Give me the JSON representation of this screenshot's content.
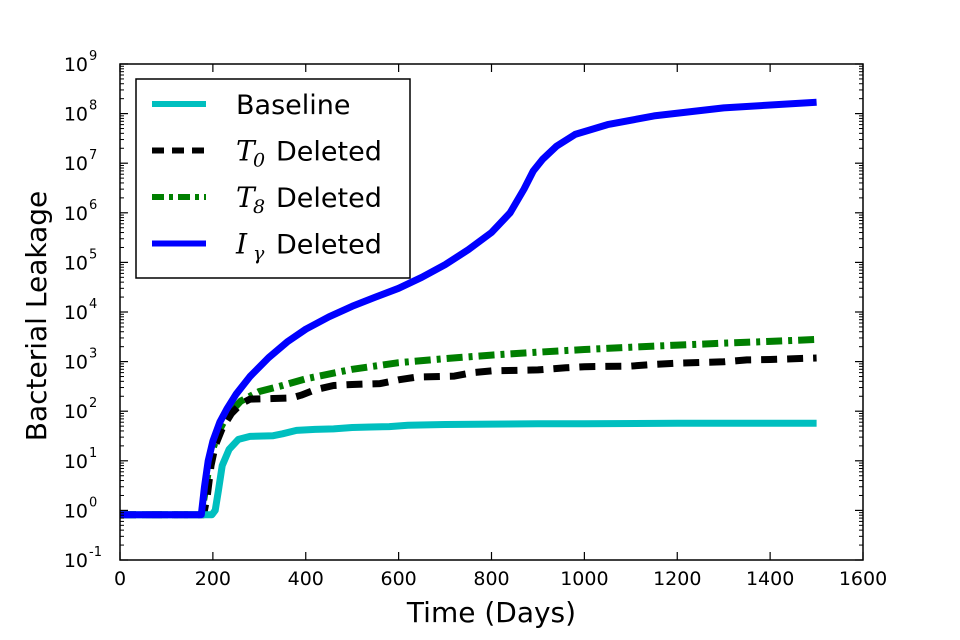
{
  "chart_data": {
    "type": "line",
    "xlabel": "Time (Days)",
    "ylabel": "Bacterial Leakage",
    "xlim": [
      0,
      1600
    ],
    "ylim": [
      0.1,
      1000000000
    ],
    "yscale": "log",
    "grid": false,
    "legend_position": "top-left",
    "x_ticks": [
      0,
      200,
      400,
      600,
      800,
      1000,
      1200,
      1400,
      1600
    ],
    "x_tick_labels": [
      "0",
      "200",
      "400",
      "600",
      "800",
      "1000",
      "1200",
      "1400",
      "1600"
    ],
    "y_ticks": [
      {
        "value": 0.1,
        "base": "10",
        "exp": "-1"
      },
      {
        "value": 1,
        "base": "10",
        "exp": "0"
      },
      {
        "value": 10,
        "base": "10",
        "exp": "1"
      },
      {
        "value": 100,
        "base": "10",
        "exp": "2"
      },
      {
        "value": 1000,
        "base": "10",
        "exp": "3"
      },
      {
        "value": 10000,
        "base": "10",
        "exp": "4"
      },
      {
        "value": 100000,
        "base": "10",
        "exp": "5"
      },
      {
        "value": 1000000,
        "base": "10",
        "exp": "6"
      },
      {
        "value": 10000000,
        "base": "10",
        "exp": "7"
      },
      {
        "value": 100000000,
        "base": "10",
        "exp": "8"
      },
      {
        "value": 1000000000,
        "base": "10",
        "exp": "9"
      }
    ],
    "series": [
      {
        "key": "baseline",
        "legend_main": "Baseline",
        "legend_symbol": "",
        "legend_sub": "",
        "legend_suffix": "",
        "color": "#00bfbf",
        "style": "solid",
        "x": [
          0,
          100,
          180,
          198,
          205,
          212,
          220,
          235,
          255,
          280,
          330,
          350,
          380,
          420,
          460,
          500,
          540,
          580,
          620,
          700,
          800,
          900,
          1000,
          1200,
          1400,
          1500
        ],
        "y": [
          0.82,
          0.82,
          0.82,
          0.82,
          1.0,
          2.5,
          8,
          17,
          27,
          31,
          32,
          35,
          41,
          43,
          44,
          47,
          48,
          49,
          52,
          54,
          55,
          56,
          56,
          57,
          57,
          57
        ]
      },
      {
        "key": "t0",
        "legend_main": "Deleted",
        "legend_symbol": "T",
        "legend_sub": "0",
        "legend_suffix": "",
        "color": "#000000",
        "style": "dashed",
        "x": [
          0,
          100,
          180,
          188,
          196,
          205,
          220,
          240,
          260,
          280,
          330,
          370,
          390,
          420,
          460,
          500,
          560,
          600,
          640,
          720,
          760,
          800,
          900,
          960,
          1000,
          1100,
          1150,
          1200,
          1300,
          1350,
          1400,
          1500
        ],
        "y": [
          0.82,
          0.82,
          0.82,
          2,
          8,
          20,
          45,
          90,
          140,
          175,
          180,
          185,
          210,
          270,
          330,
          345,
          360,
          430,
          490,
          510,
          600,
          650,
          680,
          750,
          790,
          810,
          880,
          930,
          990,
          1080,
          1100,
          1180
        ]
      },
      {
        "key": "t8",
        "legend_main": "Deleted",
        "legend_symbol": "T",
        "legend_sub": "8",
        "legend_suffix": "",
        "color": "#007f00",
        "style": "dashdot",
        "x": [
          0,
          100,
          175,
          185,
          195,
          210,
          230,
          260,
          300,
          350,
          400,
          500,
          600,
          700,
          800,
          900,
          1000,
          1100,
          1200,
          1300,
          1400,
          1500
        ],
        "y": [
          0.82,
          0.82,
          0.82,
          3,
          12,
          35,
          80,
          160,
          250,
          330,
          450,
          700,
          950,
          1150,
          1350,
          1550,
          1750,
          1950,
          2150,
          2350,
          2550,
          2800
        ]
      },
      {
        "key": "igamma",
        "legend_main": "Deleted",
        "legend_symbol": "I",
        "legend_sub": "γ",
        "legend_suffix": "",
        "color": "#0000ff",
        "style": "solid",
        "x": [
          0,
          100,
          175,
          182,
          190,
          200,
          215,
          230,
          250,
          280,
          320,
          360,
          400,
          450,
          500,
          550,
          600,
          650,
          700,
          750,
          800,
          840,
          870,
          890,
          910,
          940,
          980,
          1050,
          1150,
          1300,
          1500
        ],
        "y": [
          0.82,
          0.82,
          0.82,
          3,
          10,
          25,
          60,
          110,
          220,
          500,
          1200,
          2500,
          4500,
          8000,
          13000,
          20000,
          30000,
          50000,
          90000,
          180000,
          400000,
          1000000,
          3000000,
          7000000,
          12000000,
          22000000,
          38000000,
          60000000,
          90000000,
          130000000,
          170000000
        ]
      }
    ]
  }
}
